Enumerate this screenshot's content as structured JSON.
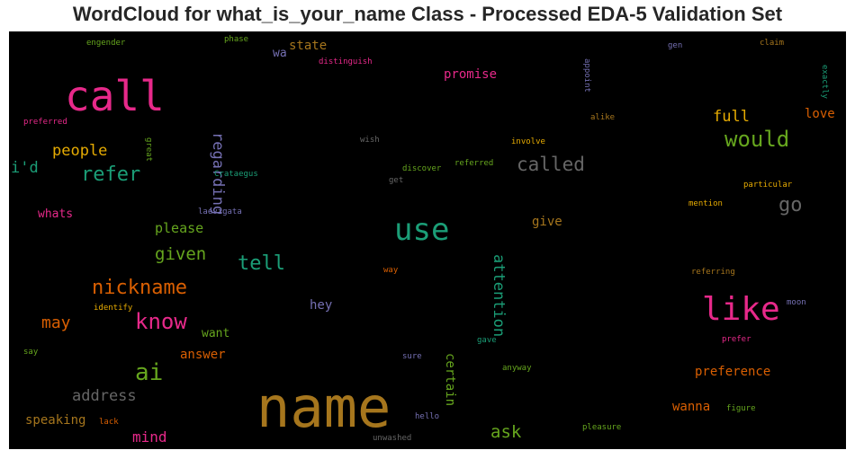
{
  "chart_data": {
    "type": "wordcloud",
    "title": "WordCloud for what_is_your_name Class - Processed EDA-5 Validation Set",
    "background": "#000000",
    "words": [
      {
        "text": "name",
        "color": "#a6761d",
        "rotate": 0
      },
      {
        "text": "call",
        "color": "#e7298a",
        "rotate": 0
      },
      {
        "text": "use",
        "color": "#1b9e77",
        "rotate": 0
      },
      {
        "text": "like",
        "color": "#e7298a",
        "rotate": 0
      },
      {
        "text": "would",
        "color": "#66a61e",
        "rotate": 0
      },
      {
        "text": "ai",
        "color": "#66a61e",
        "rotate": 0
      },
      {
        "text": "know",
        "color": "#e7298a",
        "rotate": 0
      },
      {
        "text": "nickname",
        "color": "#d95f02",
        "rotate": 0
      },
      {
        "text": "called",
        "color": "#666666",
        "rotate": 0
      },
      {
        "text": "refer",
        "color": "#1b9e77",
        "rotate": 0
      },
      {
        "text": "tell",
        "color": "#1b9e77",
        "rotate": 0
      },
      {
        "text": "go",
        "color": "#666666",
        "rotate": 0
      },
      {
        "text": "given",
        "color": "#66a61e",
        "rotate": 0
      },
      {
        "text": "address",
        "color": "#666666",
        "rotate": 0
      },
      {
        "text": "may",
        "color": "#d95f02",
        "rotate": 0
      },
      {
        "text": "ask",
        "color": "#66a61e",
        "rotate": 0
      },
      {
        "text": "regarding",
        "color": "#7570b3",
        "rotate": 90
      },
      {
        "text": "attention",
        "color": "#1b9e77",
        "rotate": 90
      },
      {
        "text": "full",
        "color": "#e6ab02",
        "rotate": 0
      },
      {
        "text": "people",
        "color": "#e6ab02",
        "rotate": 0
      },
      {
        "text": "i'd",
        "color": "#1b9e77",
        "rotate": 0
      },
      {
        "text": "please",
        "color": "#66a61e",
        "rotate": 0
      },
      {
        "text": "mind",
        "color": "#e7298a",
        "rotate": 0
      },
      {
        "text": "speaking",
        "color": "#a6761d",
        "rotate": 0
      },
      {
        "text": "preference",
        "color": "#d95f02",
        "rotate": 0
      },
      {
        "text": "certain",
        "color": "#66a61e",
        "rotate": 90
      },
      {
        "text": "promise",
        "color": "#e7298a",
        "rotate": 0
      },
      {
        "text": "wanna",
        "color": "#d95f02",
        "rotate": 0
      },
      {
        "text": "love",
        "color": "#d95f02",
        "rotate": 0
      },
      {
        "text": "state",
        "color": "#a6761d",
        "rotate": 0
      },
      {
        "text": "hey",
        "color": "#7570b3",
        "rotate": 0
      },
      {
        "text": "answer",
        "color": "#d95f02",
        "rotate": 0
      },
      {
        "text": "give",
        "color": "#a6761d",
        "rotate": 0
      },
      {
        "text": "want",
        "color": "#66a61e",
        "rotate": 0
      },
      {
        "text": "whats",
        "color": "#e7298a",
        "rotate": 0
      },
      {
        "text": "wa",
        "color": "#7570b3",
        "rotate": 0
      },
      {
        "text": "distinguish",
        "color": "#e7298a",
        "rotate": 0
      },
      {
        "text": "phase",
        "color": "#66a61e",
        "rotate": 0
      },
      {
        "text": "engender",
        "color": "#66a61e",
        "rotate": 0
      },
      {
        "text": "gen",
        "color": "#7570b3",
        "rotate": 0
      },
      {
        "text": "claim",
        "color": "#a6761d",
        "rotate": 0
      },
      {
        "text": "appoint",
        "color": "#7570b3",
        "rotate": 90
      },
      {
        "text": "exactly",
        "color": "#1b9e77",
        "rotate": 90
      },
      {
        "text": "alike",
        "color": "#a6761d",
        "rotate": 0
      },
      {
        "text": "preferred",
        "color": "#e7298a",
        "rotate": 0
      },
      {
        "text": "wish",
        "color": "#666666",
        "rotate": 0
      },
      {
        "text": "involve",
        "color": "#e6ab02",
        "rotate": 0
      },
      {
        "text": "great",
        "color": "#66a61e",
        "rotate": 90
      },
      {
        "text": "Crataegus",
        "color": "#1b9e77",
        "rotate": 0
      },
      {
        "text": "discover",
        "color": "#66a61e",
        "rotate": 0
      },
      {
        "text": "referred",
        "color": "#66a61e",
        "rotate": 0
      },
      {
        "text": "get",
        "color": "#666666",
        "rotate": 0
      },
      {
        "text": "particular",
        "color": "#e6ab02",
        "rotate": 0
      },
      {
        "text": "laevigata",
        "color": "#7570b3",
        "rotate": 0
      },
      {
        "text": "mention",
        "color": "#e6ab02",
        "rotate": 0
      },
      {
        "text": "way",
        "color": "#d95f02",
        "rotate": 0
      },
      {
        "text": "referring",
        "color": "#a6761d",
        "rotate": 0
      },
      {
        "text": "moon",
        "color": "#7570b3",
        "rotate": 0
      },
      {
        "text": "identify",
        "color": "#e6ab02",
        "rotate": 0
      },
      {
        "text": "gave",
        "color": "#1b9e77",
        "rotate": 0
      },
      {
        "text": "prefer",
        "color": "#e7298a",
        "rotate": 0
      },
      {
        "text": "say",
        "color": "#66a61e",
        "rotate": 0
      },
      {
        "text": "sure",
        "color": "#7570b3",
        "rotate": 0
      },
      {
        "text": "anyway",
        "color": "#66a61e",
        "rotate": 0
      },
      {
        "text": "figure",
        "color": "#66a61e",
        "rotate": 0
      },
      {
        "text": "hello",
        "color": "#7570b3",
        "rotate": 0
      },
      {
        "text": "lack",
        "color": "#d95f02",
        "rotate": 0
      },
      {
        "text": "unwashed",
        "color": "#666666",
        "rotate": 0
      },
      {
        "text": "pleasure",
        "color": "#66a61e",
        "rotate": 0
      }
    ]
  }
}
